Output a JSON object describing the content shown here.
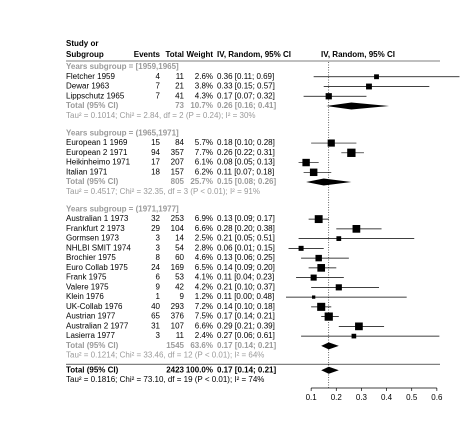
{
  "chart_data": {
    "type": "forest",
    "header": {
      "study": [
        "Study or",
        "Subgroup"
      ],
      "events": "Events",
      "total": "Total",
      "weight": "Weight",
      "ci": "IV, Random, 95% CI",
      "plot": "IV, Random, 95% CI"
    },
    "groups": [
      {
        "title": "Years subgroup = [1959,1965]",
        "studies": [
          {
            "name": "Fletcher 1959",
            "events": 4,
            "total": 11,
            "weight": 2.6,
            "weight_label": "2.6%",
            "ci_label": "0.36 [0.11; 0.69]",
            "est": 0.36,
            "lo": 0.11,
            "hi": 0.69
          },
          {
            "name": "Dewar 1963",
            "events": 7,
            "total": 21,
            "weight": 3.8,
            "weight_label": "3.8%",
            "ci_label": "0.33 [0.15; 0.57]",
            "est": 0.33,
            "lo": 0.15,
            "hi": 0.57
          },
          {
            "name": "Lippschutz 1965",
            "events": 7,
            "total": 41,
            "weight": 4.3,
            "weight_label": "4.3%",
            "ci_label": "0.17 [0.07; 0.32]",
            "est": 0.17,
            "lo": 0.07,
            "hi": 0.32
          }
        ],
        "summary": {
          "label": "Total (95% CI)",
          "total": 73,
          "weight_label": "10.7%",
          "ci_label": "0.26 [0.16; 0.41]",
          "est": 0.26,
          "lo": 0.16,
          "hi": 0.41
        },
        "heterogeneity": "Tau² = 0.1014; Chi² = 2.84, df = 2 (P = 0.24); I² = 30%"
      },
      {
        "title": "Years subgroup = (1965,1971]",
        "studies": [
          {
            "name": "European 1 1969",
            "events": 15,
            "total": 84,
            "weight": 5.7,
            "weight_label": "5.7%",
            "ci_label": "0.18 [0.10; 0.28]",
            "est": 0.18,
            "lo": 0.1,
            "hi": 0.28
          },
          {
            "name": "European 2 1971",
            "events": 94,
            "total": 357,
            "weight": 7.7,
            "weight_label": "7.7%",
            "ci_label": "0.26 [0.22; 0.31]",
            "est": 0.26,
            "lo": 0.22,
            "hi": 0.31
          },
          {
            "name": "Heikinheimo 1971",
            "events": 17,
            "total": 207,
            "weight": 6.1,
            "weight_label": "6.1%",
            "ci_label": "0.08 [0.05; 0.13]",
            "est": 0.08,
            "lo": 0.05,
            "hi": 0.13
          },
          {
            "name": "Italian 1971",
            "events": 18,
            "total": 157,
            "weight": 6.2,
            "weight_label": "6.2%",
            "ci_label": "0.11 [0.07; 0.18]",
            "est": 0.11,
            "lo": 0.07,
            "hi": 0.18
          }
        ],
        "summary": {
          "label": "Total (95% CI)",
          "total": 805,
          "weight_label": "25.7%",
          "ci_label": "0.15 [0.08; 0.26]",
          "est": 0.15,
          "lo": 0.08,
          "hi": 0.26
        },
        "heterogeneity": "Tau² = 0.4517; Chi² = 32.35, df = 3 (P < 0.01); I² = 91%"
      },
      {
        "title": "Years subgroup = (1971,1977]",
        "studies": [
          {
            "name": "Australian 1 1973",
            "events": 32,
            "total": 253,
            "weight": 6.9,
            "weight_label": "6.9%",
            "ci_label": "0.13 [0.09; 0.17]",
            "est": 0.13,
            "lo": 0.09,
            "hi": 0.17
          },
          {
            "name": "Frankfurt 2 1973",
            "events": 29,
            "total": 104,
            "weight": 6.6,
            "weight_label": "6.6%",
            "ci_label": "0.28 [0.20; 0.38]",
            "est": 0.28,
            "lo": 0.2,
            "hi": 0.38
          },
          {
            "name": "Gormsen 1973",
            "events": 3,
            "total": 14,
            "weight": 2.5,
            "weight_label": "2.5%",
            "ci_label": "0.21 [0.05; 0.51]",
            "est": 0.21,
            "lo": 0.05,
            "hi": 0.51
          },
          {
            "name": "NHLBI SMIT 1974",
            "events": 3,
            "total": 54,
            "weight": 2.8,
            "weight_label": "2.8%",
            "ci_label": "0.06 [0.01; 0.15]",
            "est": 0.06,
            "lo": 0.01,
            "hi": 0.15
          },
          {
            "name": "Brochier 1975",
            "events": 8,
            "total": 60,
            "weight": 4.6,
            "weight_label": "4.6%",
            "ci_label": "0.13 [0.06; 0.25]",
            "est": 0.13,
            "lo": 0.06,
            "hi": 0.25
          },
          {
            "name": "Euro Collab 1975",
            "events": 24,
            "total": 169,
            "weight": 6.5,
            "weight_label": "6.5%",
            "ci_label": "0.14 [0.09; 0.20]",
            "est": 0.14,
            "lo": 0.09,
            "hi": 0.2
          },
          {
            "name": "Frank 1975",
            "events": 6,
            "total": 53,
            "weight": 4.1,
            "weight_label": "4.1%",
            "ci_label": "0.11 [0.04; 0.23]",
            "est": 0.11,
            "lo": 0.04,
            "hi": 0.23
          },
          {
            "name": "Valere 1975",
            "events": 9,
            "total": 42,
            "weight": 4.2,
            "weight_label": "4.2%",
            "ci_label": "0.21 [0.10; 0.37]",
            "est": 0.21,
            "lo": 0.1,
            "hi": 0.37
          },
          {
            "name": "Klein 1976",
            "events": 1,
            "total": 9,
            "weight": 1.2,
            "weight_label": "1.2%",
            "ci_label": "0.11 [0.00; 0.48]",
            "est": 0.11,
            "lo": 0.0,
            "hi": 0.48
          },
          {
            "name": "UK-Collab 1976",
            "events": 40,
            "total": 293,
            "weight": 7.2,
            "weight_label": "7.2%",
            "ci_label": "0.14 [0.10; 0.18]",
            "est": 0.14,
            "lo": 0.1,
            "hi": 0.18
          },
          {
            "name": "Austrian 1977",
            "events": 65,
            "total": 376,
            "weight": 7.5,
            "weight_label": "7.5%",
            "ci_label": "0.17 [0.14; 0.21]",
            "est": 0.17,
            "lo": 0.14,
            "hi": 0.21
          },
          {
            "name": "Australian 2 1977",
            "events": 31,
            "total": 107,
            "weight": 6.6,
            "weight_label": "6.6%",
            "ci_label": "0.29 [0.21; 0.39]",
            "est": 0.29,
            "lo": 0.21,
            "hi": 0.39
          },
          {
            "name": "Lasierra 1977",
            "events": 3,
            "total": 11,
            "weight": 2.4,
            "weight_label": "2.4%",
            "ci_label": "0.27 [0.06; 0.61]",
            "est": 0.27,
            "lo": 0.06,
            "hi": 0.61
          }
        ],
        "summary": {
          "label": "Total (95% CI)",
          "total": 1545,
          "weight_label": "63.6%",
          "ci_label": "0.17 [0.14; 0.21]",
          "est": 0.17,
          "lo": 0.14,
          "hi": 0.21
        },
        "heterogeneity": "Tau² = 0.1214; Chi² = 33.46, df = 12 (P < 0.01); I² = 64%"
      }
    ],
    "overall": {
      "label": "Total (95% CI)",
      "total": 2423,
      "weight_label": "100.0%",
      "ci_label": "0.17 [0.14; 0.21]",
      "est": 0.17,
      "lo": 0.14,
      "hi": 0.21,
      "heterogeneity": "Tau² = 0.1816; Chi² = 73.10, df = 19 (P < 0.01); I² = 74%"
    },
    "xlim": [
      0,
      0.7
    ],
    "xticks": [
      0.1,
      0.2,
      0.3,
      0.4,
      0.5,
      0.6
    ]
  }
}
